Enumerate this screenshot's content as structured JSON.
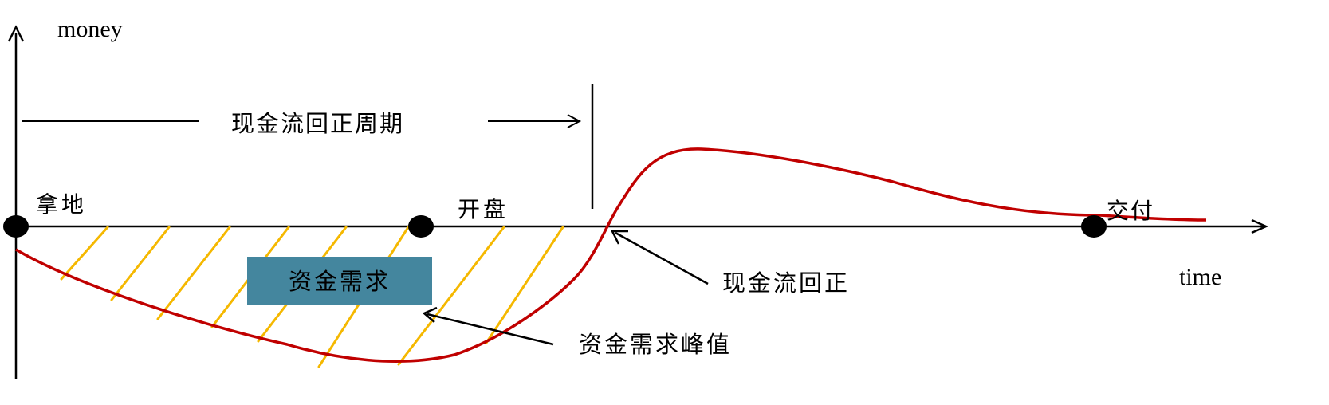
{
  "axes": {
    "y_label": "money",
    "x_label": "time"
  },
  "period": {
    "label": "现金流回正周期"
  },
  "milestones": {
    "acquire_land": "拿地",
    "open_sale": "开盘",
    "delivery": "交付"
  },
  "annotations": {
    "breakeven": "现金流回正",
    "peak_demand": "资金需求峰值"
  },
  "box": {
    "label": "资金需求"
  },
  "colors": {
    "curve": "#c00000",
    "hatch": "#f5b800",
    "box": "#44869e",
    "axis": "#000000"
  }
}
